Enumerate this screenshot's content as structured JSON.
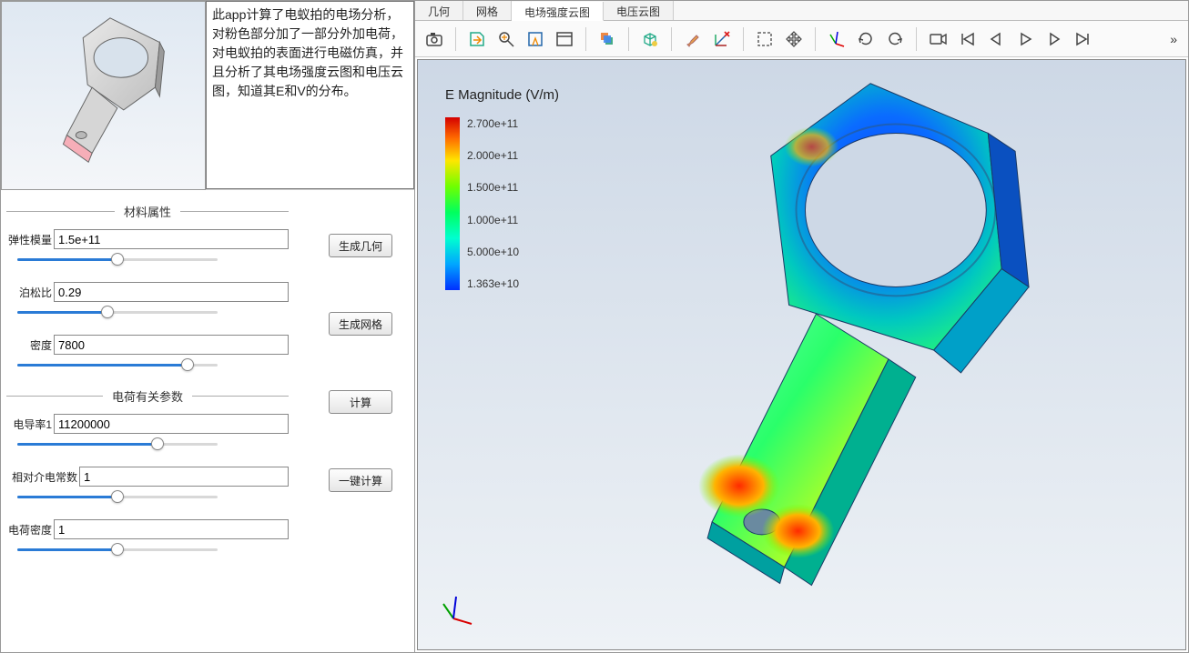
{
  "description": "此app计算了电蚁拍的电场分析，对粉色部分加了一部分外加电荷，对电蚁拍的表面进行电磁仿真，并且分析了其电场强度云图和电压云图，知道其E和V的分布。",
  "sections": {
    "material": {
      "title": "材料属性"
    },
    "charge": {
      "title": "电荷有关参数"
    }
  },
  "fields": {
    "elastic_modulus": {
      "label": "弹性模量",
      "value": "1.5e+11",
      "slider_pct": 50
    },
    "poisson": {
      "label": "泊松比",
      "value": "0.29",
      "slider_pct": 45
    },
    "density": {
      "label": "密度",
      "value": "7800",
      "slider_pct": 85
    },
    "conductivity": {
      "label": "电导率1",
      "value": "11200000",
      "slider_pct": 70
    },
    "rel_perm": {
      "label": "相对介电常数",
      "value": "1",
      "slider_pct": 50
    },
    "charge_density": {
      "label": "电荷密度",
      "value": "1",
      "slider_pct": 50
    }
  },
  "buttons": {
    "gen_geom": "生成几何",
    "gen_mesh": "生成网格",
    "compute": "计算",
    "compute_all": "一键计算"
  },
  "tabs": [
    "几何",
    "网格",
    "电场强度云图",
    "电压云图"
  ],
  "active_tab_index": 2,
  "toolbar_icons": [
    "camera",
    "export",
    "zoom-fit",
    "select-box",
    "window",
    "layers",
    "cube-probe",
    "brush",
    "axis-delete",
    "marquee",
    "move",
    "triad",
    "rotate-cw",
    "rotate-ccw",
    "record",
    "skip-start",
    "step-back",
    "play",
    "step-fwd",
    "skip-end"
  ],
  "toolbar_separators_after": [
    0,
    4,
    5,
    6,
    8,
    10,
    13
  ],
  "legend": {
    "title": "E Magnitude (V/m)",
    "ticks": [
      "2.700e+11",
      "2.000e+11",
      "1.500e+11",
      "1.000e+11",
      "5.000e+10",
      "1.363e+10"
    ],
    "gradient_colors": [
      "#d40000",
      "#ff6a00",
      "#ffe600",
      "#6fff00",
      "#00ff5e",
      "#00ffd0",
      "#00a6ff",
      "#0030ff"
    ]
  },
  "thumb_colors": {
    "body_top": "#c9c9c9",
    "body_side": "#9a9a9a",
    "body_front": "#e2e2e2",
    "accent": "#f6aeb8",
    "bg_top": "#dfe8f2",
    "bg_bottom": "#f4f6f9"
  },
  "viewport_colors": {
    "bg_top": "#cdd8e6",
    "bg_bottom": "#eef2f6"
  },
  "triad": {
    "x_color": "#d80000",
    "y_color": "#00a000",
    "z_color": "#0000d8"
  }
}
